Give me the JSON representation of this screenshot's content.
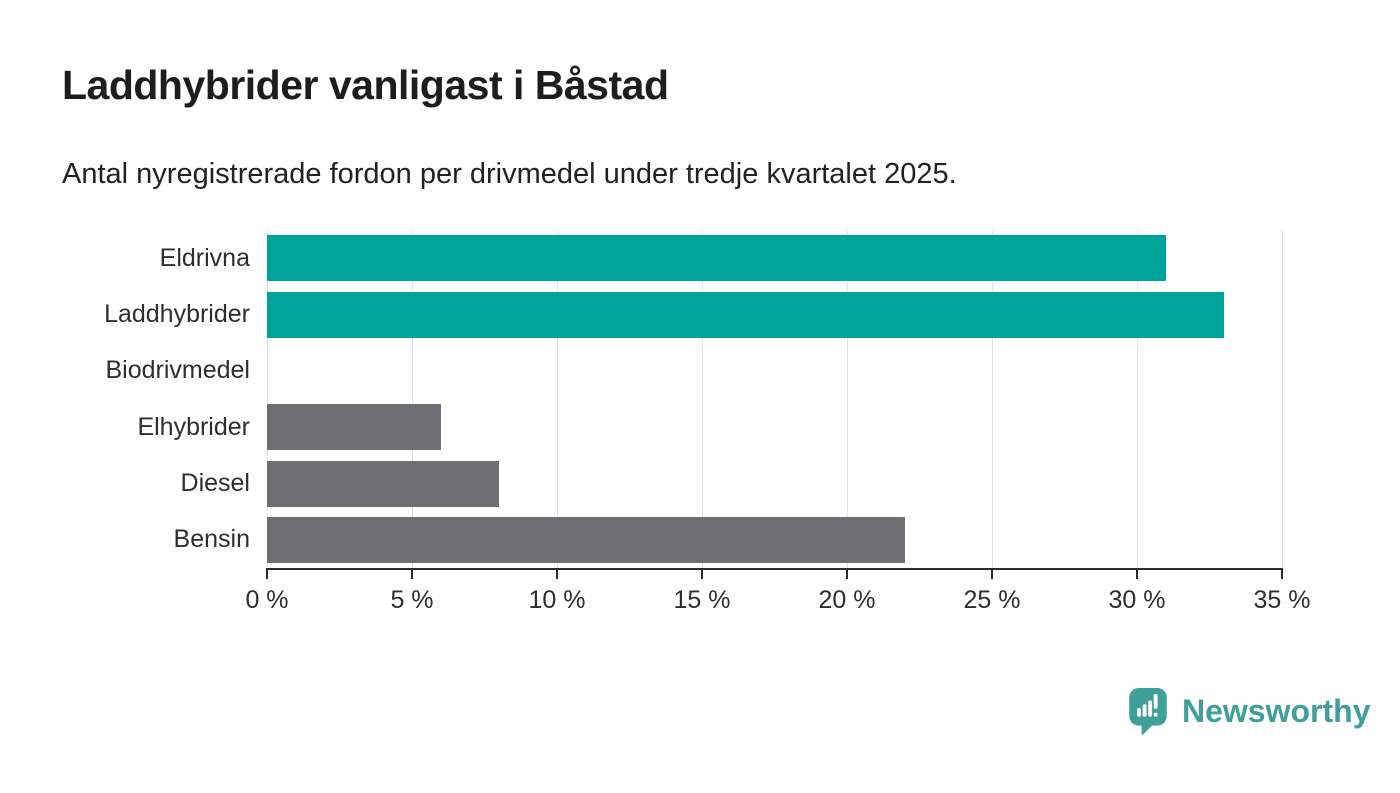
{
  "header": {
    "title": "Laddhybrider vanligast i Båstad",
    "subtitle": "Antal nyregistrerade fordon per drivmedel under tredje kvartalet 2025."
  },
  "colors": {
    "teal": "#00a39a",
    "gray": "#6f6e73",
    "gridline": "#e2e2e2",
    "axis": "#2b2b2b",
    "text": "#2e2e2e",
    "logo_teal": "#3fa099"
  },
  "chart_data": {
    "type": "bar",
    "orientation": "horizontal",
    "title": "Laddhybrider vanligast i Båstad",
    "subtitle": "Antal nyregistrerade fordon per drivmedel under tredje kvartalet 2025.",
    "categories": [
      "Eldrivna",
      "Laddhybrider",
      "Biodrivmedel",
      "Elhybrider",
      "Diesel",
      "Bensin"
    ],
    "values": [
      31,
      33,
      0,
      6,
      8,
      22
    ],
    "unit": "%",
    "bar_colors": [
      "#00a39a",
      "#00a39a",
      "#6f6e73",
      "#6f6e73",
      "#6f6e73",
      "#6f6e73"
    ],
    "xlim": [
      0,
      35
    ],
    "x_ticks": [
      0,
      5,
      10,
      15,
      20,
      25,
      30,
      35
    ],
    "x_tick_labels": [
      "0 %",
      "5 %",
      "10 %",
      "15 %",
      "20 %",
      "25 %",
      "30 %",
      "35 %"
    ],
    "grid": true,
    "legend": false
  },
  "footer": {
    "brand": "Newsworthy"
  }
}
